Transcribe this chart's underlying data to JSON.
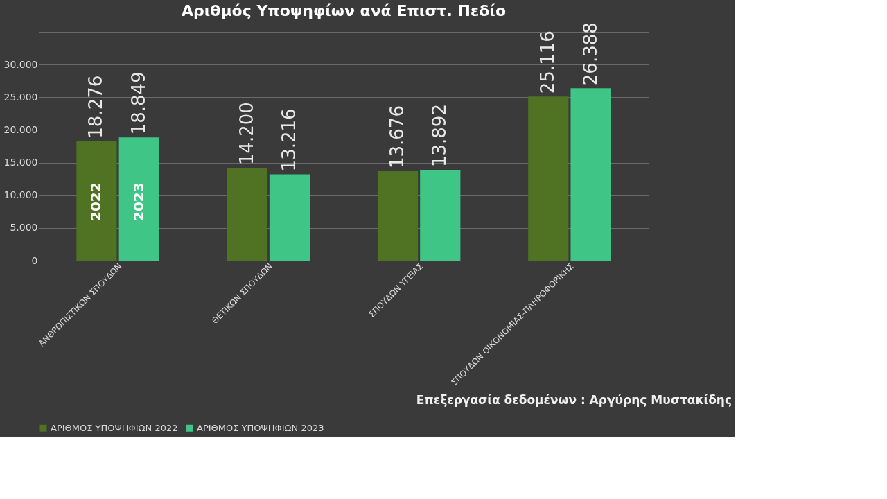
{
  "chart_data": {
    "type": "bar",
    "title": "Αριθμός Υποψηφίων ανά Επιστ. Πεδίο",
    "categories": [
      "ΑΝΘΡΩΠΙΣΤΙΚΩΝ ΣΠΟΥΔΩΝ",
      "ΘΕΤΙΚΩΝ ΣΠΟΥΔΩΝ",
      "ΣΠΟΥΔΩΝ ΥΓΕΙΑΣ",
      "ΣΠΟΥΔΩΝ ΟΙΚΟΝΟΜΙΑΣ-ΠΛΗΡΟΦΟΡΙΚΗΣ"
    ],
    "series": [
      {
        "name": "ΑΡΙΘΜΟΣ ΥΠΟΨΗΦΙΩΝ 2022",
        "color": "#4f7323",
        "values": [
          18276,
          14200,
          13676,
          25116
        ],
        "value_labels": [
          "18.276",
          "14.200",
          "13.676",
          "25.116"
        ]
      },
      {
        "name": "ΑΡΙΘΜΟΣ ΥΠΟΨΗΦΙΩΝ 2023",
        "color": "#3fc585",
        "values": [
          18849,
          13216,
          13892,
          26388
        ],
        "value_labels": [
          "18.849",
          "13.216",
          "13.892",
          "26.388"
        ]
      }
    ],
    "ylim": [
      0,
      35000
    ],
    "yticks": [
      0,
      {
        "value": 5000,
        "label": "5.000"
      },
      {
        "value": 10000,
        "label": "10.000"
      },
      {
        "value": 15000,
        "label": "15.000"
      },
      {
        "value": 20000,
        "label": "20.000"
      },
      {
        "value": 25000,
        "label": "25.000"
      },
      {
        "value": 30000,
        "label": "30.000"
      },
      {
        "value": 35000,
        "label": null
      }
    ],
    "grid": "y",
    "legend": "bottom",
    "annotations": [
      {
        "text": "2022",
        "x": "ΑΝΘΡΩΠΙΣΤΙΚΩΝ ΣΠΟΥΔΩΝ",
        "y": 9000
      },
      {
        "text": "2023",
        "x": "ΑΝΘΡΩΠΙΣΤΙΚΩΝ ΣΠΟΥΔΩΝ",
        "y": 9000
      },
      "Επεξεργασία δεδομένων : Αργύρης Μυστακίδης"
    ]
  }
}
